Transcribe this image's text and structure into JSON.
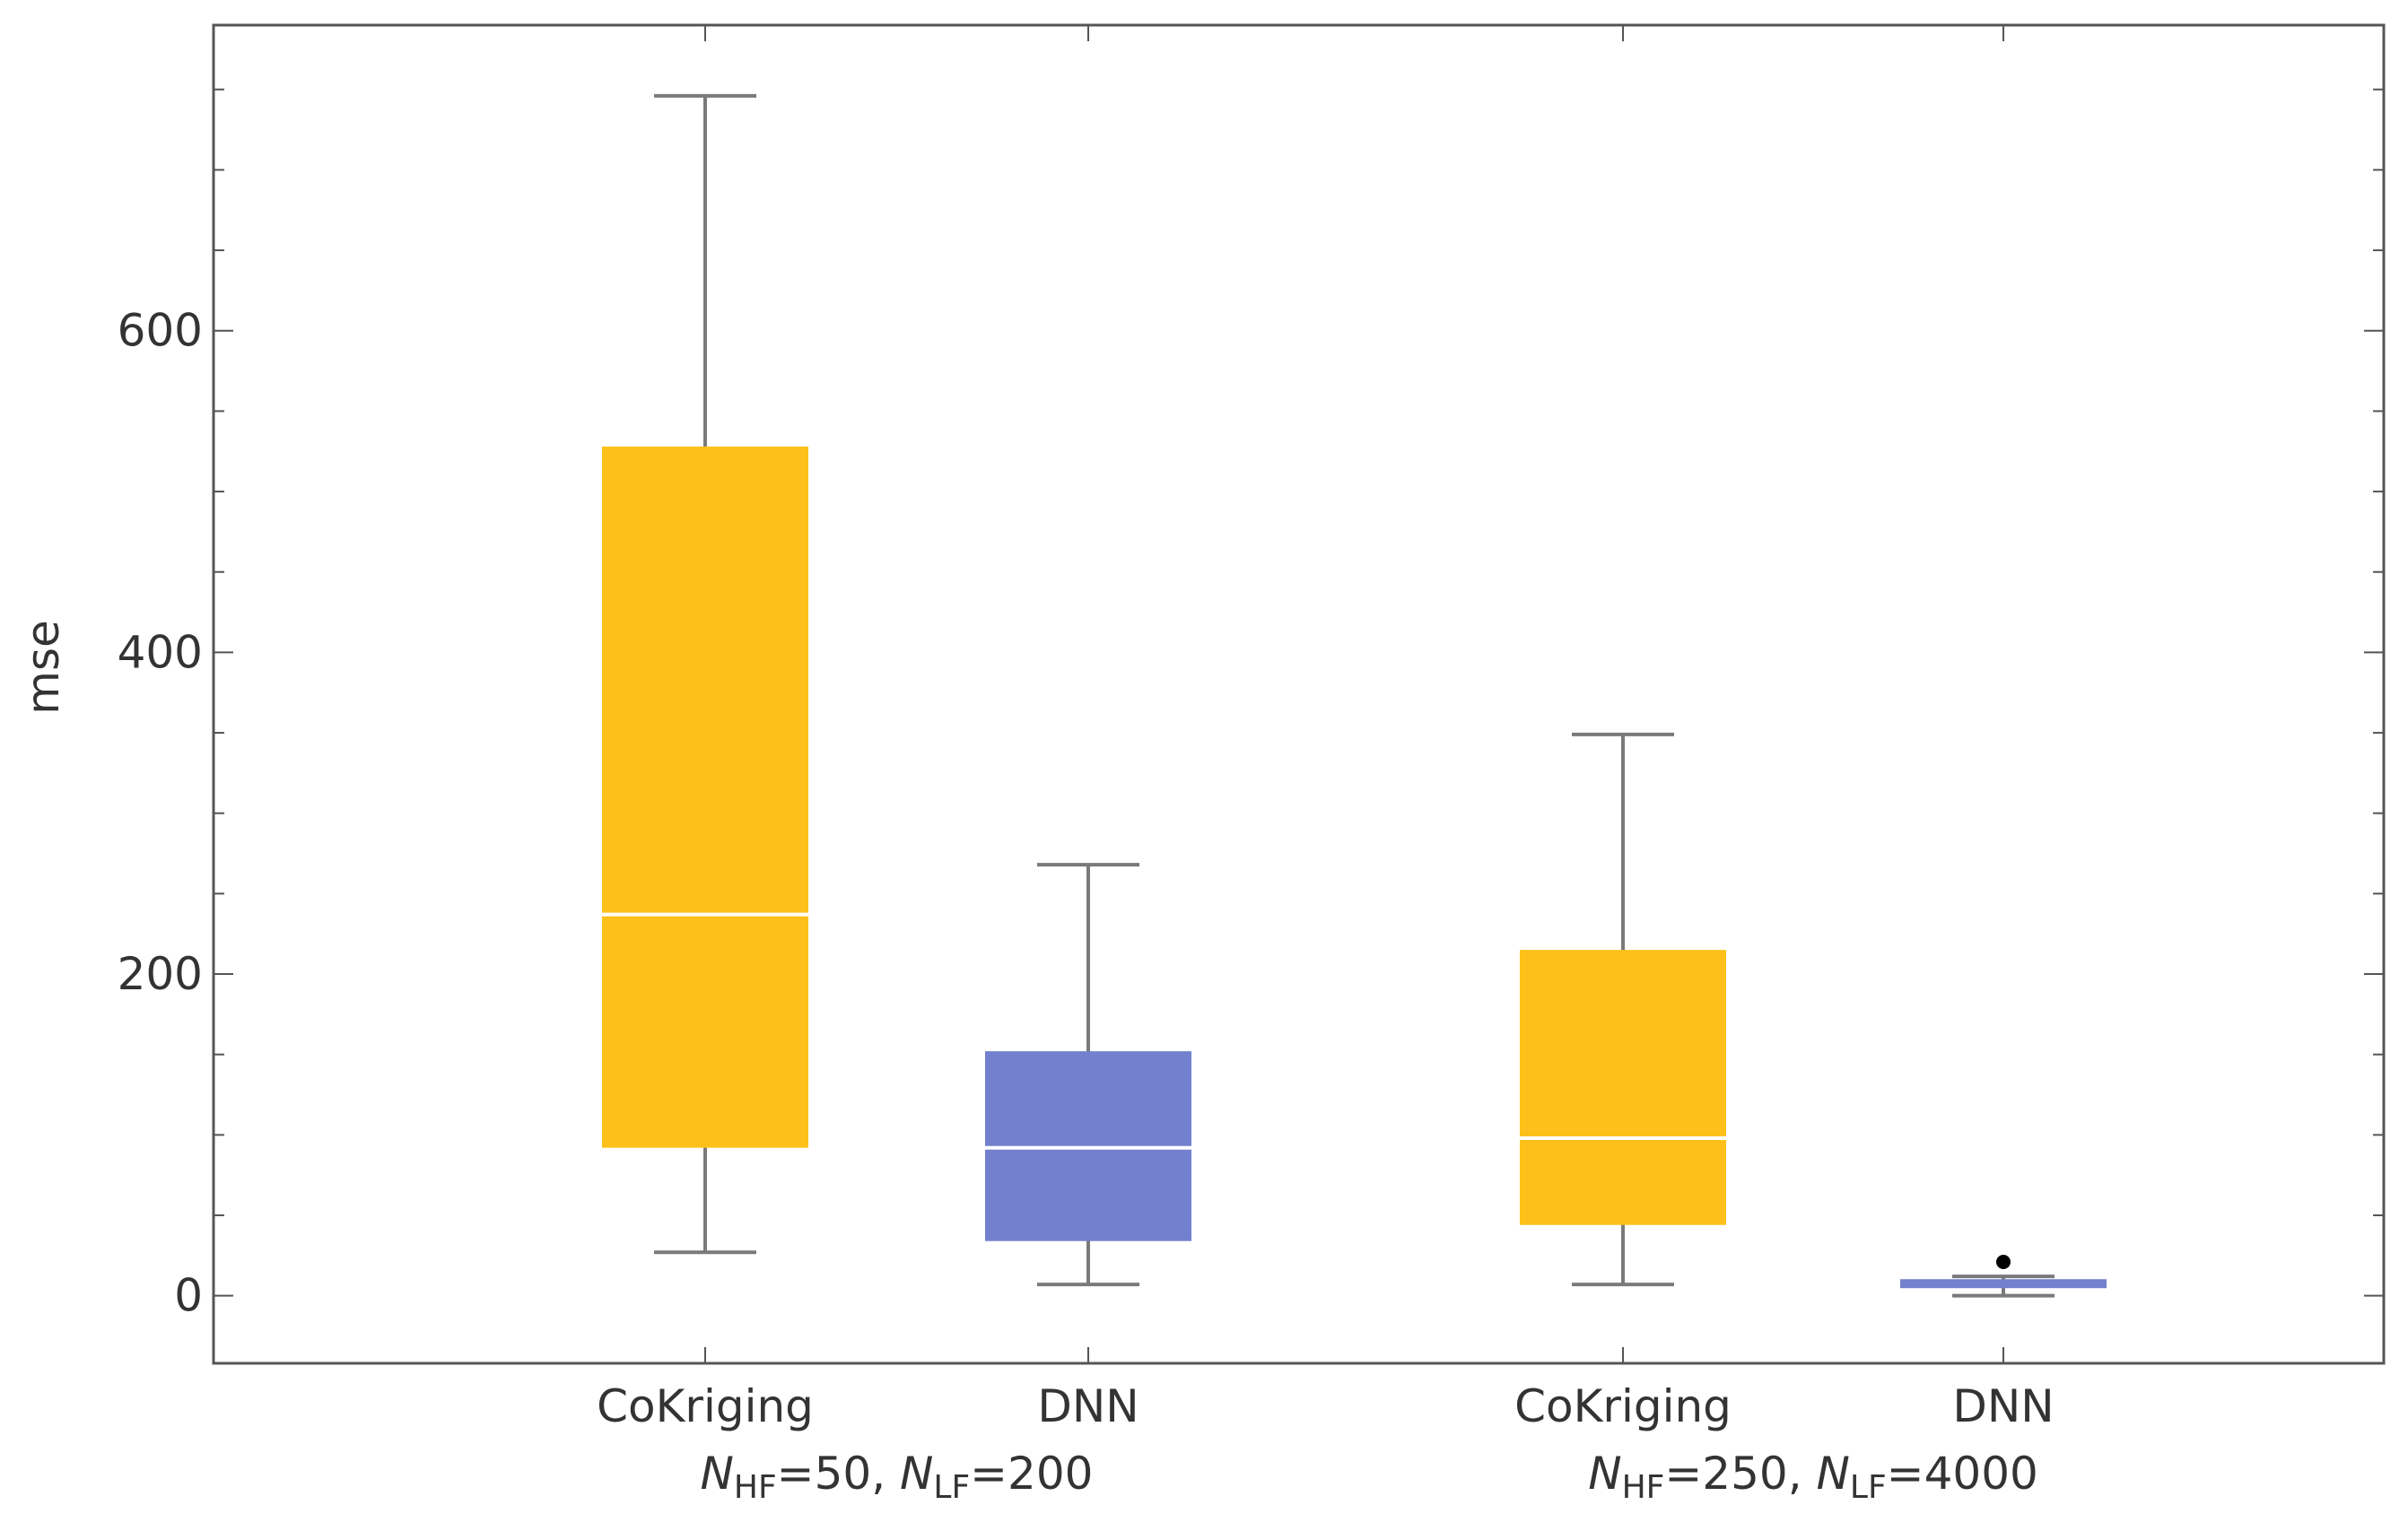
{
  "chart_data": {
    "type": "box",
    "title": "",
    "xlabel": "",
    "ylabel": "mse",
    "ylim": [
      -42,
      790
    ],
    "yticks": [
      0,
      200,
      400,
      600
    ],
    "y_minor_step": 50,
    "grid": false,
    "colors": {
      "CoKriging": "#FDC01A",
      "DNN": "#7280CD",
      "whisker": "#7A7A7A",
      "median": "#FFFFFF",
      "outlier": "#000000",
      "axes": "#555555"
    },
    "groups": [
      {
        "label_parts": [
          {
            "text": "N",
            "style": "italic"
          },
          {
            "text": "HF",
            "style": "sub"
          },
          {
            "text": "=50, ",
            "style": "normal"
          },
          {
            "text": "N",
            "style": "italic"
          },
          {
            "text": "LF",
            "style": "sub"
          },
          {
            "text": "=200",
            "style": "normal"
          }
        ],
        "boxes": [
          {
            "category": "CoKriging",
            "whisker_low": 27,
            "q1": 92,
            "median": 237,
            "q3": 528,
            "whisker_high": 746,
            "outliers": []
          },
          {
            "category": "DNN",
            "whisker_low": 7,
            "q1": 34,
            "median": 92,
            "q3": 152,
            "whisker_high": 268,
            "outliers": []
          }
        ]
      },
      {
        "label_parts": [
          {
            "text": "N",
            "style": "italic"
          },
          {
            "text": "HF",
            "style": "sub"
          },
          {
            "text": "=250, ",
            "style": "normal"
          },
          {
            "text": "N",
            "style": "italic"
          },
          {
            "text": "LF",
            "style": "sub"
          },
          {
            "text": "=4000",
            "style": "normal"
          }
        ],
        "boxes": [
          {
            "category": "CoKriging",
            "whisker_low": 7,
            "q1": 44,
            "median": 98,
            "q3": 215,
            "whisker_high": 349,
            "outliers": []
          },
          {
            "category": "DNN",
            "whisker_low": 0,
            "q1": 5,
            "median": 7,
            "q3": 10,
            "whisker_high": 12,
            "outliers": [
              21
            ]
          }
        ]
      }
    ]
  }
}
